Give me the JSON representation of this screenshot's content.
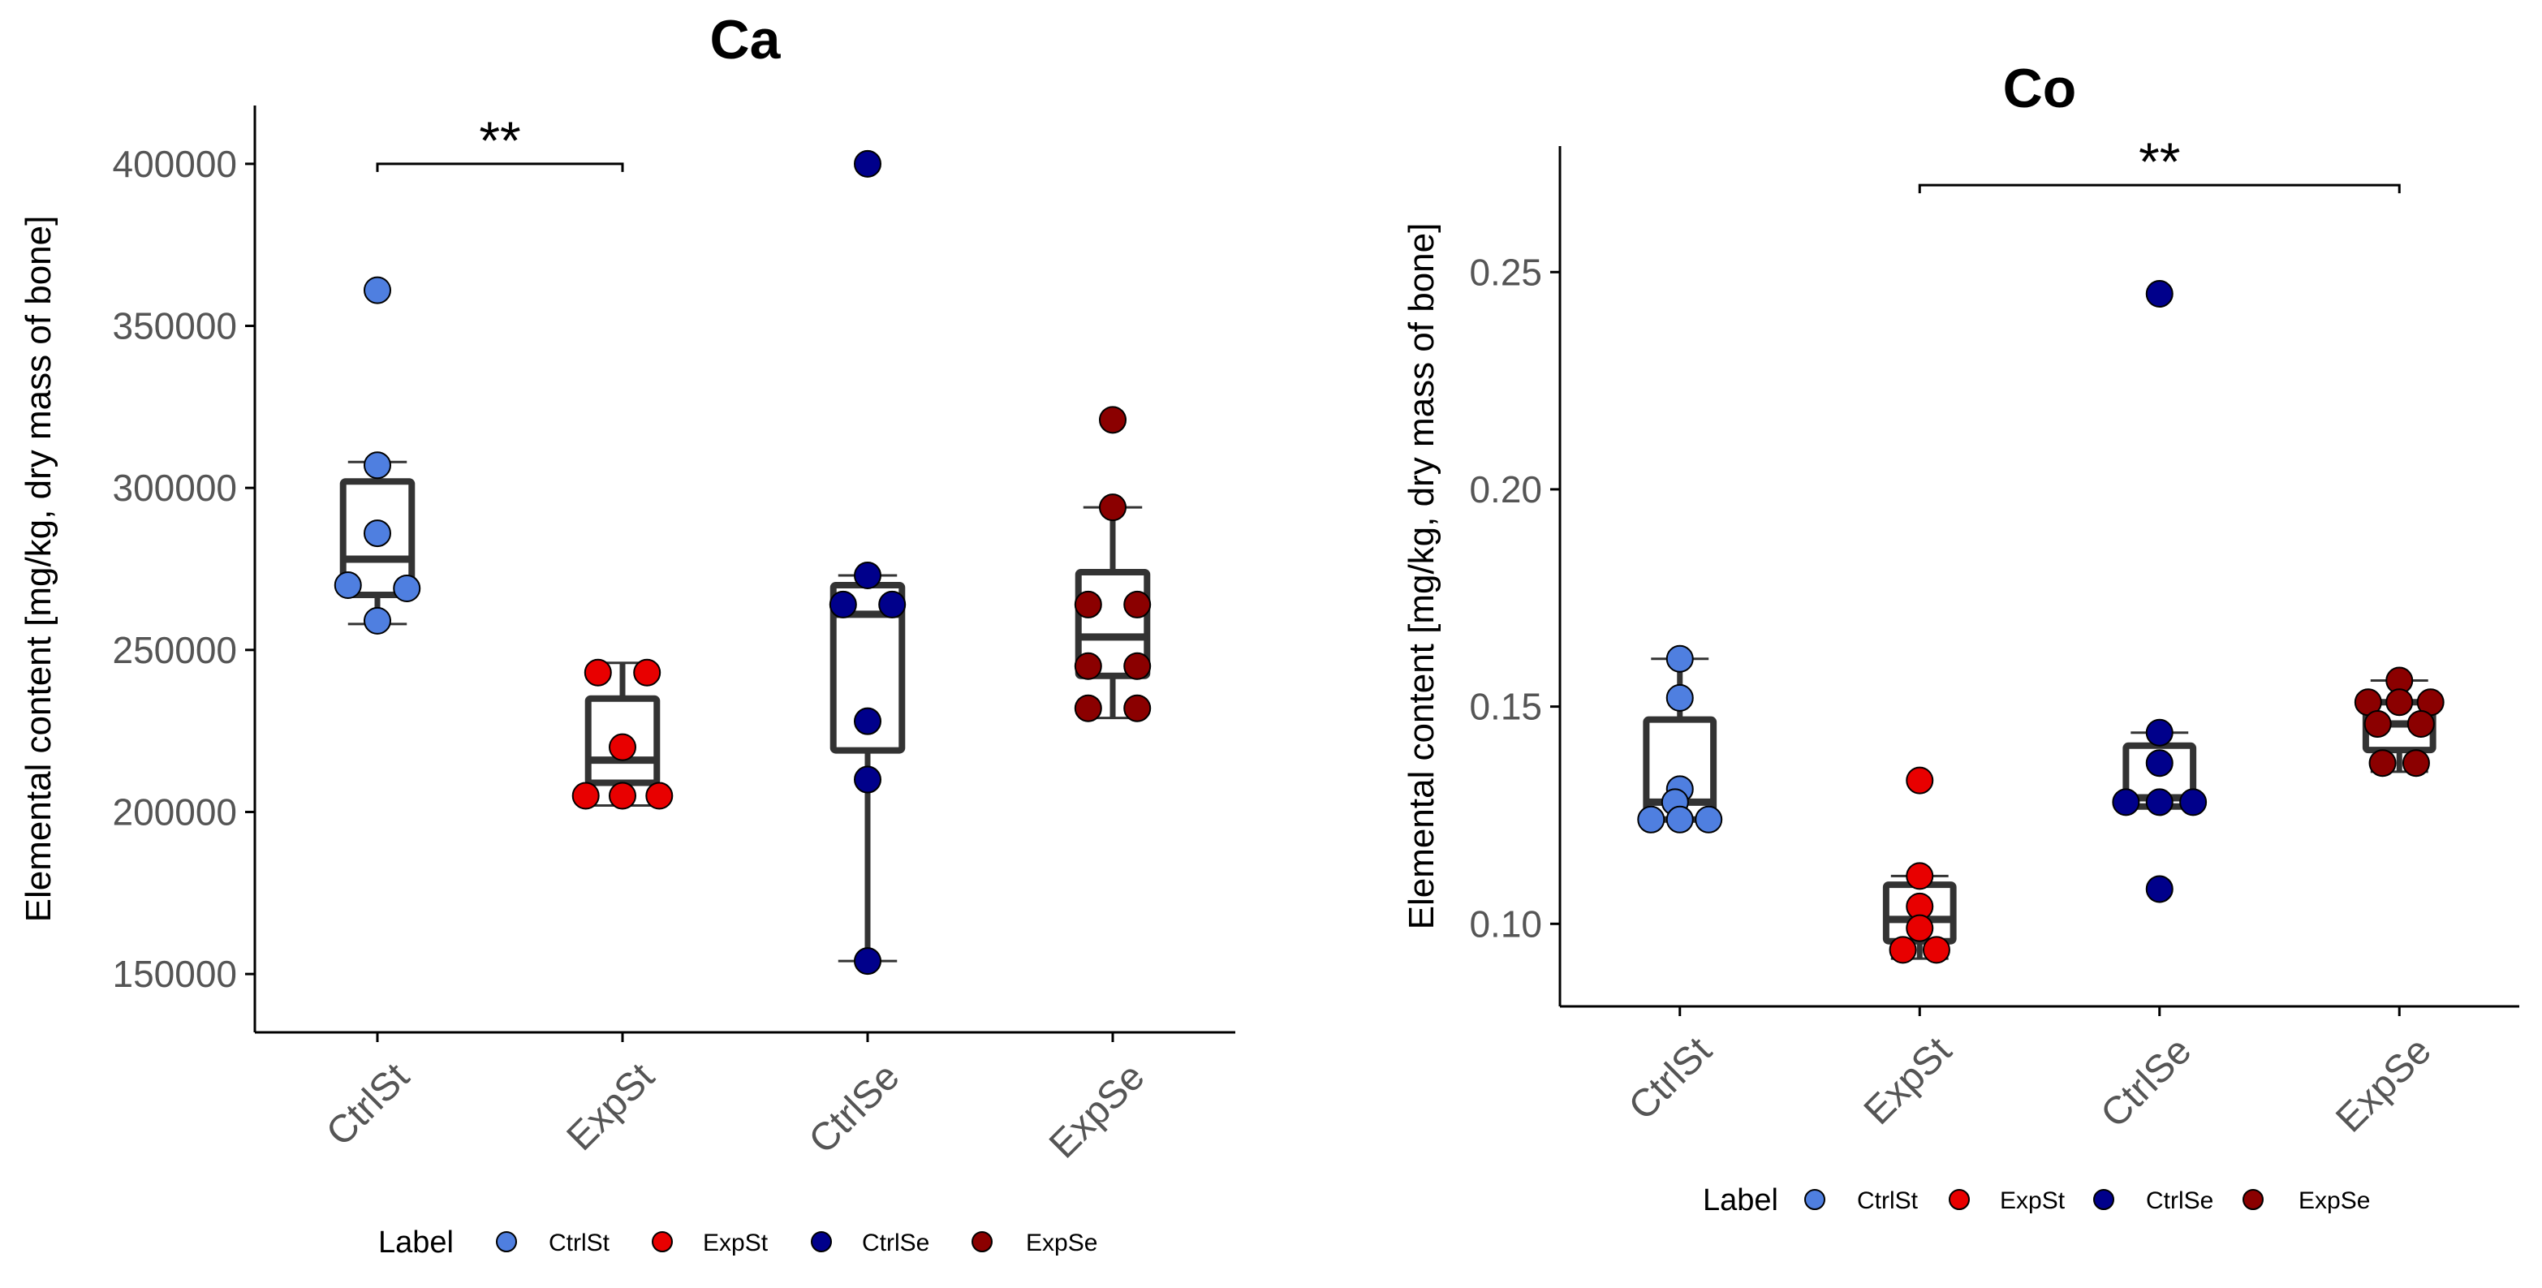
{
  "legend_title": "Label",
  "colors": {
    "CtrlSt": "#4F7FE0",
    "ExpSt": "#E80000",
    "CtrlSe": "#00008B",
    "ExpSe": "#8B0000",
    "box": "#333333",
    "axis": "#000000",
    "tick_label": "#555555"
  },
  "chart_data": [
    {
      "type": "box",
      "title": "Ca",
      "xlabel": "",
      "ylabel": "Elemental content [mg/kg, dry mass of bone]",
      "categories": [
        "CtrlSt",
        "ExpSt",
        "CtrlSe",
        "ExpSe"
      ],
      "ylim": [
        132000,
        418000
      ],
      "y_ticks": [
        150000,
        200000,
        250000,
        300000,
        350000,
        400000
      ],
      "y_tick_labels": [
        "150000",
        "200000",
        "250000",
        "300000",
        "350000",
        "400000"
      ],
      "boxes": [
        {
          "category": "CtrlSt",
          "q1": 267000,
          "median": 278000,
          "q3": 302000,
          "whisker_low": 258000,
          "whisker_high": 308000
        },
        {
          "category": "ExpSt",
          "q1": 209000,
          "median": 216000,
          "q3": 235000,
          "whisker_low": 202000,
          "whisker_high": 246000
        },
        {
          "category": "CtrlSe",
          "q1": 219000,
          "median": 261000,
          "q3": 270000,
          "whisker_low": 154000,
          "whisker_high": 273000
        },
        {
          "category": "ExpSe",
          "q1": 242000,
          "median": 254000,
          "q3": 274000,
          "whisker_low": 229000,
          "whisker_high": 294000
        }
      ],
      "points": [
        {
          "category": "CtrlSt",
          "values": [
            361000,
            307000,
            286000,
            270000,
            269000,
            259000
          ],
          "offsets": [
            0,
            0,
            0,
            -0.12,
            0.12,
            0
          ]
        },
        {
          "category": "ExpSt",
          "values": [
            243000,
            243000,
            220000,
            205000,
            205000,
            205000
          ],
          "offsets": [
            -0.1,
            0.1,
            0,
            -0.15,
            0,
            0.15
          ]
        },
        {
          "category": "CtrlSe",
          "values": [
            400000,
            273000,
            264000,
            264000,
            228000,
            210000,
            154000
          ],
          "offsets": [
            0,
            0,
            -0.1,
            0.1,
            0,
            0,
            0
          ]
        },
        {
          "category": "ExpSe",
          "values": [
            321000,
            294000,
            264000,
            264000,
            245000,
            245000,
            232000,
            232000
          ],
          "offsets": [
            0,
            0,
            -0.1,
            0.1,
            -0.1,
            0.1,
            -0.1,
            0.1
          ]
        }
      ],
      "significance": {
        "from": "CtrlSt",
        "to": "ExpSt",
        "y": 400000,
        "label": "**"
      },
      "legend": {
        "position": "bottom",
        "entries": [
          "CtrlSt",
          "ExpSt",
          "CtrlSe",
          "ExpSe"
        ]
      }
    },
    {
      "type": "box",
      "title": "Co",
      "xlabel": "",
      "ylabel": "Elemental content [mg/kg, dry mass of bone]",
      "categories": [
        "CtrlSt",
        "ExpSt",
        "CtrlSe",
        "ExpSe"
      ],
      "ylim": [
        0.081,
        0.279
      ],
      "y_ticks": [
        0.1,
        0.15,
        0.2,
        0.25
      ],
      "y_tick_labels": [
        "0.10",
        "0.15",
        "0.20",
        "0.25"
      ],
      "boxes": [
        {
          "category": "CtrlSt",
          "q1": 0.124,
          "median": 0.128,
          "q3": 0.147,
          "whisker_low": 0.124,
          "whisker_high": 0.161
        },
        {
          "category": "ExpSt",
          "q1": 0.096,
          "median": 0.101,
          "q3": 0.109,
          "whisker_low": 0.092,
          "whisker_high": 0.111
        },
        {
          "category": "CtrlSe",
          "q1": 0.127,
          "median": 0.129,
          "q3": 0.141,
          "whisker_low": 0.127,
          "whisker_high": 0.144
        },
        {
          "category": "ExpSe",
          "q1": 0.14,
          "median": 0.146,
          "q3": 0.151,
          "whisker_low": 0.135,
          "whisker_high": 0.156
        }
      ],
      "points": [
        {
          "category": "CtrlSt",
          "values": [
            0.161,
            0.152,
            0.131,
            0.128,
            0.124,
            0.124,
            0.124
          ],
          "offsets": [
            0,
            0,
            0,
            -0.02,
            -0.12,
            0,
            0.12
          ]
        },
        {
          "category": "ExpSt",
          "values": [
            0.133,
            0.111,
            0.104,
            0.099,
            0.094,
            0.094
          ],
          "offsets": [
            0,
            0,
            0,
            0,
            -0.07,
            0.07
          ]
        },
        {
          "category": "CtrlSe",
          "values": [
            0.245,
            0.144,
            0.137,
            0.128,
            0.128,
            0.128,
            0.108
          ],
          "offsets": [
            0,
            0,
            0,
            -0.14,
            0,
            0.14,
            0
          ]
        },
        {
          "category": "ExpSe",
          "values": [
            0.156,
            0.151,
            0.151,
            0.151,
            0.146,
            0.146,
            0.137,
            0.137
          ],
          "offsets": [
            0,
            -0.13,
            0,
            0.13,
            -0.09,
            0.09,
            -0.07,
            0.07
          ]
        }
      ],
      "significance": {
        "from": "ExpSt",
        "to": "ExpSe",
        "y": 0.27,
        "label": "**"
      },
      "legend": {
        "position": "bottom",
        "entries": [
          "CtrlSt",
          "ExpSt",
          "CtrlSe",
          "ExpSe"
        ]
      }
    }
  ]
}
